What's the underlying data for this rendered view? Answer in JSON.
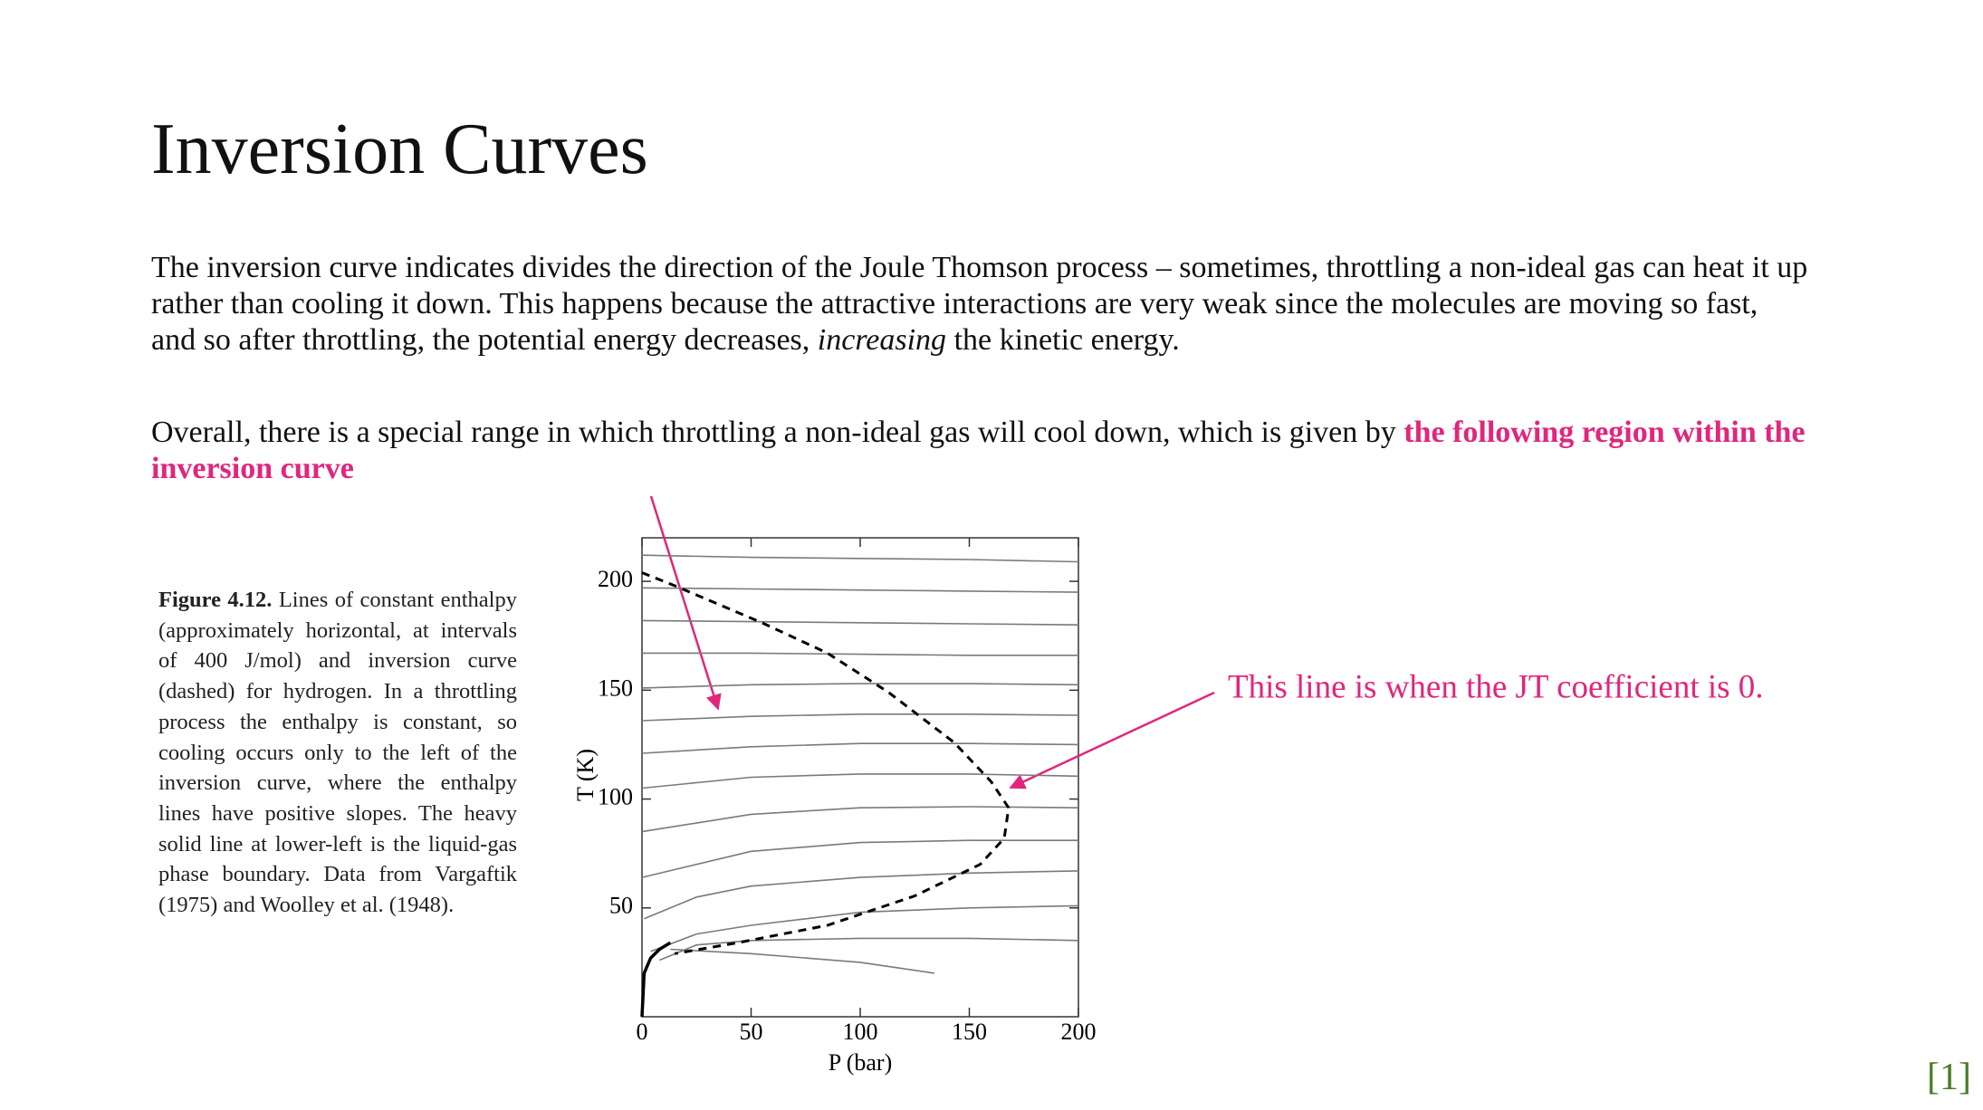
{
  "title": "Inversion Curves",
  "paragraphs": [
    {
      "text": "The inversion curve indicates divides the direction of the Joule Thomson process – sometimes, throttling a non-ideal gas can heat it up rather than cooling it down. This happens because the attractive interactions are very weak since the molecules are moving so fast, and so after throttling, the potential energy decreases,",
      "emphasis": "increasing",
      "text_after": "the kinetic energy."
    },
    {
      "text": "Overall, there is a special range in which throttling a non-ideal gas will cool down, which is given by",
      "highlight": "the following region within the inversion curve"
    }
  ],
  "figure": {
    "caption_label": "Figure 4.12.",
    "caption": "Lines of constant enthalpy (approximately horizontal, at intervals of 400 J/mol) and inversion curve (dashed) for hydrogen. In a throttling process the enthalpy is constant, so cooling occurs only to the left of the inversion curve, where the enthalpy lines have positive slopes. The heavy solid line at lower-left is the liquid-gas phase boundary. Data from Vargaftik (1975) and Woolley et al. (1948)."
  },
  "chart_data": {
    "type": "line",
    "xlabel": "P (bar)",
    "ylabel": "T (K)",
    "xlim": [
      0,
      200
    ],
    "ylim": [
      0,
      220
    ],
    "xticks": [
      0,
      50,
      100,
      150,
      200
    ],
    "yticks": [
      50,
      100,
      150,
      200
    ],
    "grid": false,
    "series": [
      {
        "color": "#7a7a7a",
        "style": "solid",
        "x": [
          0,
          50,
          100,
          150,
          200
        ],
        "values": [
          212,
          211,
          210.5,
          210,
          209
        ]
      },
      {
        "color": "#7a7a7a",
        "style": "solid",
        "x": [
          0,
          50,
          100,
          150,
          200
        ],
        "values": [
          197,
          196.5,
          196,
          195.5,
          195
        ]
      },
      {
        "color": "#7a7a7a",
        "style": "solid",
        "x": [
          0,
          50,
          100,
          150,
          200
        ],
        "values": [
          182,
          181.5,
          181,
          180.5,
          180
        ]
      },
      {
        "color": "#7a7a7a",
        "style": "solid",
        "x": [
          0,
          50,
          100,
          150,
          200
        ],
        "values": [
          167,
          167,
          166.5,
          166,
          166
        ]
      },
      {
        "color": "#7a7a7a",
        "style": "solid",
        "x": [
          0,
          50,
          100,
          150,
          200
        ],
        "values": [
          151,
          152.5,
          153,
          153,
          152.5
        ]
      },
      {
        "color": "#7a7a7a",
        "style": "solid",
        "x": [
          0,
          50,
          100,
          150,
          200
        ],
        "values": [
          136,
          138,
          139,
          139,
          138.5
        ]
      },
      {
        "color": "#7a7a7a",
        "style": "solid",
        "x": [
          0,
          50,
          100,
          150,
          200
        ],
        "values": [
          121,
          124,
          125.5,
          125.5,
          125
        ]
      },
      {
        "color": "#7a7a7a",
        "style": "solid",
        "x": [
          0,
          50,
          100,
          150,
          200
        ],
        "values": [
          105,
          110,
          111.5,
          111.5,
          110.5
        ]
      },
      {
        "color": "#7a7a7a",
        "style": "solid",
        "x": [
          0,
          50,
          100,
          150,
          200
        ],
        "values": [
          85,
          93,
          96,
          96.5,
          96
        ]
      },
      {
        "color": "#7a7a7a",
        "style": "solid",
        "x": [
          0,
          50,
          100,
          150,
          200
        ],
        "values": [
          64,
          76,
          80,
          81,
          81
        ]
      },
      {
        "color": "#7a7a7a",
        "style": "solid",
        "x": [
          1,
          25,
          50,
          100,
          150,
          200
        ],
        "values": [
          45,
          55,
          60,
          64,
          66,
          67
        ]
      },
      {
        "color": "#7a7a7a",
        "style": "solid",
        "x": [
          4,
          25,
          50,
          100,
          150,
          200
        ],
        "values": [
          30,
          38,
          42,
          48,
          50,
          51
        ]
      },
      {
        "color": "#7a7a7a",
        "style": "solid",
        "x": [
          8,
          25,
          50,
          100,
          150,
          200
        ],
        "values": [
          26,
          33,
          35,
          36,
          36,
          35
        ]
      },
      {
        "color": "#7a7a7a",
        "style": "solid",
        "x": [
          13,
          50,
          100,
          134
        ],
        "values": [
          31,
          29,
          25,
          20
        ]
      },
      {
        "color": "#000000",
        "style": "dashed",
        "x": [
          0,
          15,
          55,
          85,
          113,
          143,
          160,
          168,
          166,
          155,
          125,
          85,
          44,
          15
        ],
        "values": [
          204,
          198,
          181,
          167,
          149,
          126,
          108,
          96,
          82,
          70,
          55.5,
          42,
          34,
          29
        ]
      },
      {
        "color": "#000000",
        "style": "heavy",
        "x": [
          0,
          1,
          4,
          8,
          13
        ],
        "values": [
          0,
          20,
          27,
          31,
          34
        ]
      }
    ]
  },
  "annotation": "This line is when the JT coefficient is 0.",
  "citation": "[1]"
}
